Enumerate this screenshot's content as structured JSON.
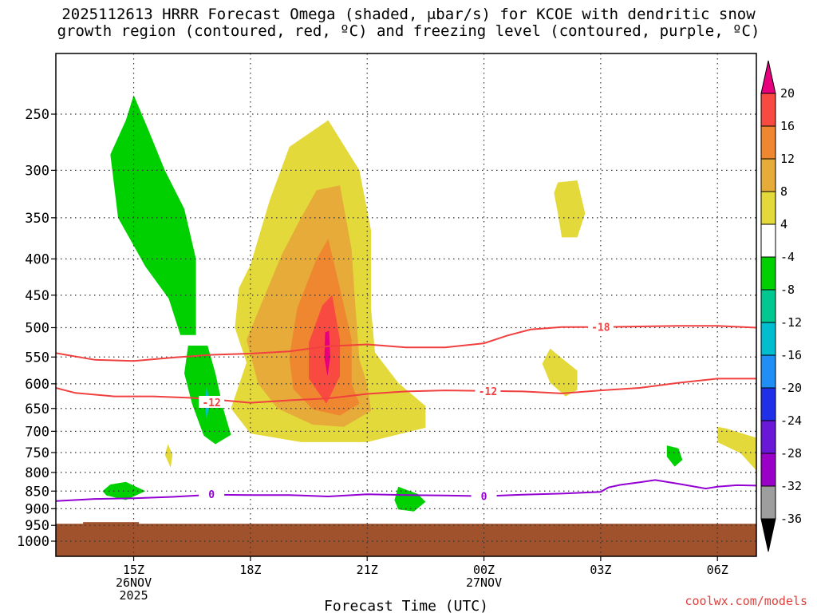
{
  "title": {
    "line1": "2025112613 HRRR Forecast Omega (shaded, μbar/s) for KCOE with dendritic snow",
    "line2": "growth region (contoured, red, ºC) and freezing level (contoured, purple, ºC)"
  },
  "credit": "coolwx.com/models",
  "chart_data": {
    "type": "contour",
    "xlabel": "Forecast Time (UTC)",
    "x_range_hours": [
      13.0,
      31.0
    ],
    "x_ticks": [
      {
        "hour": 15,
        "lines": [
          "15Z",
          "26NOV",
          "2025"
        ]
      },
      {
        "hour": 18,
        "lines": [
          "18Z"
        ]
      },
      {
        "hour": 21,
        "lines": [
          "21Z"
        ]
      },
      {
        "hour": 24,
        "lines": [
          "00Z",
          "27NOV"
        ]
      },
      {
        "hour": 27,
        "lines": [
          "03Z"
        ]
      },
      {
        "hour": 30,
        "lines": [
          "06Z"
        ]
      }
    ],
    "y_axis": {
      "label": "",
      "scale": "pressure (mb), inverted",
      "range": [
        200,
        1000
      ],
      "ticks": [
        250,
        300,
        350,
        400,
        450,
        500,
        550,
        600,
        650,
        700,
        750,
        800,
        850,
        900,
        950,
        1000
      ]
    },
    "grid": true,
    "terrain_top_mb": 945,
    "colors": {
      "terrain": "#a0522d",
      "dgz_contour": "#f04040",
      "freezing_contour": "#9400d3"
    },
    "colorbar": {
      "levels": [
        -36,
        -32,
        -28,
        -24,
        -20,
        -16,
        -12,
        -8,
        -4,
        4,
        8,
        12,
        16,
        20
      ],
      "bins": [
        {
          "from": -36,
          "to": -32,
          "color": "#9e9e9e"
        },
        {
          "from": -32,
          "to": -28,
          "color": "#9b00c8"
        },
        {
          "from": -28,
          "to": -24,
          "color": "#6a18d8"
        },
        {
          "from": -24,
          "to": -20,
          "color": "#2030e8"
        },
        {
          "from": -20,
          "to": -16,
          "color": "#1f8ef5"
        },
        {
          "from": -16,
          "to": -12,
          "color": "#00bed0"
        },
        {
          "from": -12,
          "to": -8,
          "color": "#00c890"
        },
        {
          "from": -8,
          "to": -4,
          "color": "#00d000"
        },
        {
          "from": -4,
          "to": 4,
          "color": "#ffffff"
        },
        {
          "from": 4,
          "to": 8,
          "color": "#e4d93a"
        },
        {
          "from": 8,
          "to": 12,
          "color": "#e6ab38"
        },
        {
          "from": 12,
          "to": 16,
          "color": "#ef8630"
        },
        {
          "from": 16,
          "to": 20,
          "color": "#f94a42"
        }
      ],
      "above_max_color": "#e6007e",
      "below_min_color": "#000000"
    },
    "omega_regions": [
      {
        "value_bin": "-8 to -4",
        "color": "#00d000",
        "points": [
          [
            15.0,
            235
          ],
          [
            15.4,
            265
          ],
          [
            15.8,
            300
          ],
          [
            16.3,
            340
          ],
          [
            16.6,
            400
          ],
          [
            16.6,
            512
          ],
          [
            16.2,
            512
          ],
          [
            15.9,
            455
          ],
          [
            15.3,
            410
          ],
          [
            14.6,
            350
          ],
          [
            14.4,
            285
          ],
          [
            14.8,
            255
          ]
        ]
      },
      {
        "value_bin": "-8 to -4",
        "color": "#00d000",
        "points": [
          [
            16.4,
            530
          ],
          [
            16.9,
            530
          ],
          [
            17.1,
            580
          ],
          [
            17.3,
            650
          ],
          [
            17.5,
            708
          ],
          [
            17.1,
            730
          ],
          [
            16.8,
            710
          ],
          [
            16.5,
            640
          ],
          [
            16.3,
            580
          ]
        ]
      },
      {
        "value_bin": "-16 to -12",
        "color": "#00bed0",
        "points": [
          [
            16.88,
            603
          ],
          [
            16.94,
            640
          ],
          [
            16.88,
            675
          ],
          [
            16.82,
            640
          ]
        ]
      },
      {
        "value_bin": "-8 to -4",
        "color": "#00d000",
        "points": [
          [
            14.4,
            832
          ],
          [
            14.8,
            825
          ],
          [
            15.3,
            850
          ],
          [
            14.8,
            875
          ],
          [
            14.3,
            862
          ],
          [
            14.2,
            850
          ]
        ]
      },
      {
        "value_bin": "-8 to -4",
        "color": "#00d000",
        "points": [
          [
            21.8,
            838
          ],
          [
            22.3,
            858
          ],
          [
            22.5,
            880
          ],
          [
            22.2,
            908
          ],
          [
            21.8,
            902
          ],
          [
            21.7,
            875
          ]
        ]
      },
      {
        "value_bin": "-8 to -4",
        "color": "#00d000",
        "points": [
          [
            28.7,
            733
          ],
          [
            29.0,
            740
          ],
          [
            29.1,
            768
          ],
          [
            28.9,
            785
          ],
          [
            28.7,
            760
          ]
        ]
      },
      {
        "value_bin": "4 to 8",
        "color": "#e4d93a",
        "points": [
          [
            18.0,
            408
          ],
          [
            18.5,
            330
          ],
          [
            19.0,
            278
          ],
          [
            20.0,
            255
          ],
          [
            20.8,
            300
          ],
          [
            21.1,
            365
          ],
          [
            21.1,
            470
          ],
          [
            21.2,
            542
          ],
          [
            21.8,
            598
          ],
          [
            22.5,
            645
          ],
          [
            22.5,
            692
          ],
          [
            21.0,
            725
          ],
          [
            19.3,
            725
          ],
          [
            18.0,
            705
          ],
          [
            17.5,
            650
          ],
          [
            17.9,
            560
          ],
          [
            17.6,
            500
          ],
          [
            17.7,
            440
          ]
        ]
      },
      {
        "value_bin": "4 to 8",
        "color": "#e4d93a",
        "points": [
          [
            15.88,
            730
          ],
          [
            16.0,
            755
          ],
          [
            15.95,
            788
          ],
          [
            15.8,
            755
          ]
        ]
      },
      {
        "value_bin": "4 to 8",
        "color": "#e4d93a",
        "points": [
          [
            25.9,
            312
          ],
          [
            26.4,
            310
          ],
          [
            26.6,
            345
          ],
          [
            26.4,
            373
          ],
          [
            26.0,
            373
          ],
          [
            25.9,
            345
          ],
          [
            25.8,
            323
          ]
        ]
      },
      {
        "value_bin": "4 to 8",
        "color": "#e4d93a",
        "points": [
          [
            25.5,
            562
          ],
          [
            25.7,
            535
          ],
          [
            26.0,
            552
          ],
          [
            26.4,
            575
          ],
          [
            26.4,
            612
          ],
          [
            26.1,
            625
          ],
          [
            25.7,
            598
          ]
        ]
      },
      {
        "value_bin": "4 to 8",
        "color": "#e4d93a",
        "points": [
          [
            30.0,
            690
          ],
          [
            30.2,
            693
          ],
          [
            31.0,
            715
          ],
          [
            31.0,
            795
          ],
          [
            30.6,
            752
          ],
          [
            30.0,
            725
          ]
        ]
      },
      {
        "value_bin": "8 to 12",
        "color": "#e6ab38",
        "points": [
          [
            19.3,
            350
          ],
          [
            19.7,
            320
          ],
          [
            20.3,
            315
          ],
          [
            20.6,
            388
          ],
          [
            20.7,
            470
          ],
          [
            20.8,
            555
          ],
          [
            21.0,
            600
          ],
          [
            21.1,
            655
          ],
          [
            20.4,
            690
          ],
          [
            19.6,
            685
          ],
          [
            18.7,
            650
          ],
          [
            18.2,
            600
          ],
          [
            17.9,
            520
          ],
          [
            18.3,
            460
          ],
          [
            18.8,
            395
          ]
        ]
      },
      {
        "value_bin": "12 to 16",
        "color": "#ef8630",
        "points": [
          [
            19.7,
            400
          ],
          [
            20.0,
            375
          ],
          [
            20.3,
            440
          ],
          [
            20.6,
            520
          ],
          [
            20.6,
            600
          ],
          [
            20.8,
            640
          ],
          [
            20.3,
            665
          ],
          [
            19.6,
            652
          ],
          [
            19.1,
            610
          ],
          [
            19.0,
            550
          ],
          [
            19.2,
            470
          ]
        ]
      },
      {
        "value_bin": "16 to 20",
        "color": "#f94a42",
        "points": [
          [
            19.85,
            465
          ],
          [
            20.1,
            450
          ],
          [
            20.3,
            520
          ],
          [
            20.3,
            585
          ],
          [
            19.95,
            640
          ],
          [
            19.5,
            590
          ],
          [
            19.5,
            525
          ]
        ]
      },
      {
        "value_bin": "above 20",
        "color": "#e6007e",
        "points": [
          [
            19.92,
            508
          ],
          [
            20.02,
            505
          ],
          [
            20.05,
            550
          ],
          [
            19.98,
            585
          ],
          [
            19.9,
            552
          ]
        ]
      }
    ],
    "contours": [
      {
        "label": "-18",
        "color": "#f04040",
        "label_at": [
          27.0,
          499
        ],
        "points": [
          [
            13.0,
            543
          ],
          [
            14.0,
            555
          ],
          [
            15.0,
            557
          ],
          [
            16.0,
            551
          ],
          [
            17.0,
            546
          ],
          [
            18.0,
            544
          ],
          [
            19.0,
            540
          ],
          [
            20.0,
            531
          ],
          [
            21.0,
            528
          ],
          [
            22.0,
            533
          ],
          [
            23.0,
            533
          ],
          [
            24.0,
            526
          ],
          [
            24.6,
            513
          ],
          [
            25.2,
            503
          ],
          [
            26.0,
            499
          ],
          [
            27.0,
            499
          ],
          [
            28.0,
            498
          ],
          [
            29.0,
            497
          ],
          [
            30.0,
            497
          ],
          [
            31.0,
            500
          ]
        ]
      },
      {
        "label": "-12",
        "color": "#f04040",
        "label_at": [
          17.0,
          637
        ],
        "points": [
          [
            13.0,
            608
          ],
          [
            13.5,
            618
          ],
          [
            14.5,
            625
          ],
          [
            15.5,
            625
          ],
          [
            16.5,
            628
          ],
          [
            17.3,
            633
          ],
          [
            18.0,
            638
          ],
          [
            19.0,
            633
          ],
          [
            20.0,
            629
          ],
          [
            21.0,
            620
          ],
          [
            22.0,
            615
          ],
          [
            23.0,
            613
          ],
          [
            24.0,
            614
          ],
          [
            25.0,
            615
          ],
          [
            26.0,
            619
          ],
          [
            27.0,
            613
          ],
          [
            28.0,
            608
          ],
          [
            29.0,
            598
          ],
          [
            30.0,
            590
          ],
          [
            31.0,
            590
          ]
        ]
      },
      {
        "label": "-12",
        "color": "#f04040",
        "label_at": [
          24.1,
          614
        ],
        "points": []
      },
      {
        "label": "0",
        "color": "#9400d3",
        "label_at": [
          17.0,
          858
        ],
        "points": [
          [
            13.0,
            878
          ],
          [
            14.0,
            872
          ],
          [
            15.0,
            870
          ],
          [
            16.0,
            866
          ],
          [
            17.0,
            860
          ],
          [
            18.0,
            861
          ],
          [
            19.0,
            861
          ],
          [
            20.0,
            865
          ],
          [
            21.0,
            859
          ],
          [
            22.0,
            861
          ],
          [
            23.0,
            862
          ],
          [
            24.0,
            864
          ],
          [
            25.0,
            860
          ],
          [
            26.0,
            857
          ],
          [
            27.0,
            852
          ],
          [
            27.2,
            840
          ],
          [
            27.5,
            833
          ],
          [
            28.0,
            826
          ],
          [
            28.4,
            820
          ],
          [
            29.0,
            830
          ],
          [
            29.7,
            843
          ],
          [
            30.0,
            838
          ],
          [
            30.5,
            834
          ],
          [
            31.0,
            835
          ]
        ]
      },
      {
        "label": "0",
        "color": "#9400d3",
        "label_at": [
          24.0,
          864
        ],
        "points": []
      }
    ]
  }
}
